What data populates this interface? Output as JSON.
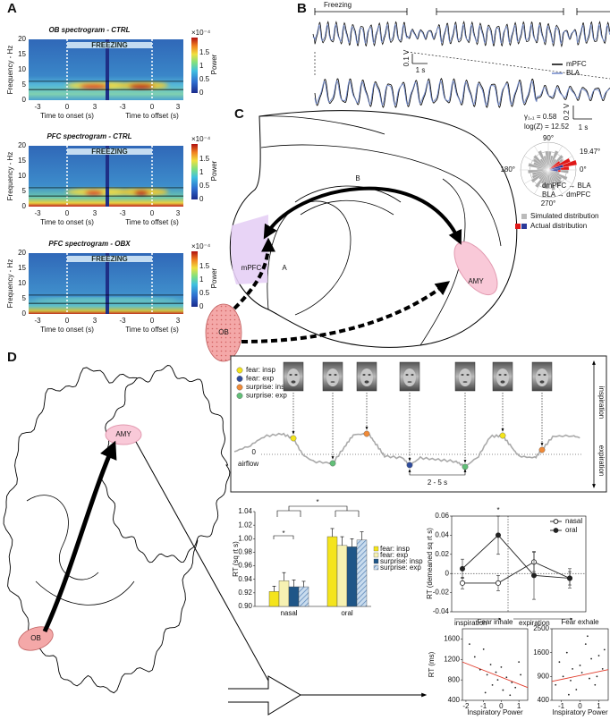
{
  "panel_a": {
    "label": "A",
    "spectrograms": [
      {
        "title": "OB spectrogram - CTRL"
      },
      {
        "title": "PFC spectrogram - CTRL"
      },
      {
        "title": "PFC spectrogram - OBX"
      }
    ],
    "freezing": "FREEZING",
    "y_label": "Frequency - Hz",
    "yticks": [
      "0",
      "5",
      "10",
      "15",
      "20"
    ],
    "xticks": [
      "-3",
      "0",
      "3",
      "-3",
      "0",
      "3"
    ],
    "x_labels": [
      "Time to onset (s)",
      "Time to offset (s)"
    ],
    "colorbar_exponent": "×10⁻⁴",
    "colorbar_ticks": [
      "0",
      "0.5",
      "1",
      "1.5"
    ],
    "colorbar_label": "Power"
  },
  "panel_b": {
    "label": "B",
    "freezing": "Freezing",
    "scale_top": {
      "v": "0.1 V",
      "t": "1 s"
    },
    "scale_bottom": {
      "v": "0.2 V",
      "t": "1 s"
    },
    "legend": [
      "mPFC",
      "BLA"
    ]
  },
  "panel_c": {
    "label": "C",
    "regions": {
      "mpfc": "mPFC",
      "amy": "AMY",
      "ob": "OB"
    },
    "pathways": [
      "A",
      "B"
    ],
    "polar": {
      "gamma": "γ₁,₁ = 0.58",
      "logz": "log(Z) = 12.52",
      "angles": [
        "90°",
        "180°",
        "0°",
        "270°"
      ],
      "peak": "19.47°",
      "directions": [
        "dmPFC → BLA",
        "BLA → dmPFC"
      ],
      "legend": [
        "Simulated distribution",
        "Actual distribution"
      ]
    }
  },
  "panel_d": {
    "label": "D",
    "regions": {
      "amy": "AMY",
      "ob": "OB"
    },
    "airflow": {
      "legend": [
        "fear: insp",
        "fear: exp",
        "surprise: insp",
        "surprise: exp"
      ],
      "legend_colors": [
        "#f3e41c",
        "#2f4c9c",
        "#f08a38",
        "#62bf78"
      ],
      "zero": "0",
      "axis": "airflow",
      "up": "inspiration",
      "down": "expiration",
      "interval": "2 - 5 s"
    },
    "bar_chart": {
      "type": "bar",
      "y_label": "RT (sq rt s)",
      "categories": [
        "nasal",
        "oral"
      ],
      "series": [
        {
          "name": "fear: insp",
          "color": "#f4e41c",
          "values": [
            0.922,
            1.003
          ],
          "errors": [
            0.008,
            0.012
          ]
        },
        {
          "name": "fear: exp",
          "color": "#f6f1b2",
          "values": [
            0.938,
            0.99
          ],
          "errors": [
            0.012,
            0.013
          ]
        },
        {
          "name": "surprise: insp",
          "color": "#1f5688",
          "values": [
            0.929,
            0.988
          ],
          "errors": [
            0.01,
            0.012
          ]
        },
        {
          "name": "surprise: exp",
          "color": "#9dbcd9",
          "pattern": "hatch",
          "values": [
            0.929,
            0.998
          ],
          "errors": [
            0.008,
            0.012
          ]
        }
      ],
      "ylim": [
        0.9,
        1.04
      ],
      "yticks": [
        {
          "value": 0.9,
          "label": "0.90"
        },
        0.92,
        0.94,
        0.96,
        0.98,
        {
          "value": 1,
          "label": "1.00"
        },
        1.02,
        1.04
      ],
      "significance": [
        "*",
        "*"
      ]
    },
    "line_chart": {
      "type": "line",
      "y_label": "RT (demeaned sq rt s)",
      "categories": [
        null,
        null,
        null,
        null
      ],
      "x_labels": [
        "inspiration",
        "expiration"
      ],
      "series": [
        {
          "name": "nasal",
          "color": "#222",
          "marker": "open",
          "values": [
            -0.01,
            -0.01,
            0.012,
            -0.005
          ],
          "errors": [
            0.006,
            0.008,
            0.01,
            0.007
          ]
        },
        {
          "name": "oral",
          "color": "#222",
          "marker": "filled",
          "values": [
            0.005,
            0.04,
            -0.002,
            -0.005
          ],
          "errors": [
            0.01,
            0.02,
            0.025,
            0.01
          ]
        }
      ],
      "ylim": [
        -0.04,
        0.06
      ],
      "yticks": [
        -0.04,
        -0.02,
        0,
        0.02,
        0.04,
        0.06
      ],
      "significance": "*"
    },
    "scatter": [
      {
        "type": "scatter",
        "title": "Fear inhale",
        "x_label": "Inspiratory Power",
        "y_label": "RT (ms)",
        "x": [
          -1.8,
          -1.5,
          -1.2,
          -1.0,
          -0.8,
          -0.6,
          -0.5,
          -0.3,
          -0.2,
          0,
          0.1,
          0.3,
          0.5,
          0.6,
          0.8,
          1.0,
          1.1,
          -0.9
        ],
        "y": [
          1500,
          1250,
          1000,
          1400,
          900,
          1100,
          700,
          950,
          800,
          1050,
          600,
          850,
          500,
          750,
          650,
          1150,
          900,
          550
        ],
        "xlim": [
          -2.2,
          1.5
        ],
        "ylim": [
          400,
          1800
        ],
        "xticks": [
          -2,
          -1,
          0,
          1
        ],
        "yticks": [
          400,
          800,
          1200,
          1600
        ],
        "fit": {
          "x": [
            -2.2,
            1.5
          ],
          "y": [
            1150,
            650
          ]
        },
        "fit_color": "#e03a2a"
      },
      {
        "type": "scatter",
        "title": "Fear exhale",
        "x_label": "Inspiratory Power",
        "x": [
          -1.3,
          -1.1,
          -0.9,
          -0.7,
          -0.5,
          -0.4,
          -0.2,
          0,
          0.1,
          0.3,
          0.5,
          0.6,
          0.8,
          1.0,
          1.2,
          1.3,
          -0.6,
          0.4,
          0.9
        ],
        "y": [
          700,
          1300,
          900,
          1600,
          800,
          1100,
          600,
          1200,
          1000,
          1900,
          850,
          1400,
          700,
          1500,
          1100,
          1700,
          500,
          2200,
          900
        ],
        "xlim": [
          -1.5,
          1.5
        ],
        "ylim": [
          400,
          2500
        ],
        "yscale": "sqrt",
        "xticks": [
          -1,
          0,
          1
        ],
        "yticks": [
          400,
          900,
          1600,
          2500
        ],
        "fit": {
          "x": [
            -1.5,
            1.5
          ],
          "y": [
            780,
            1080
          ]
        },
        "fit_color": "#e03a2a"
      }
    ]
  }
}
